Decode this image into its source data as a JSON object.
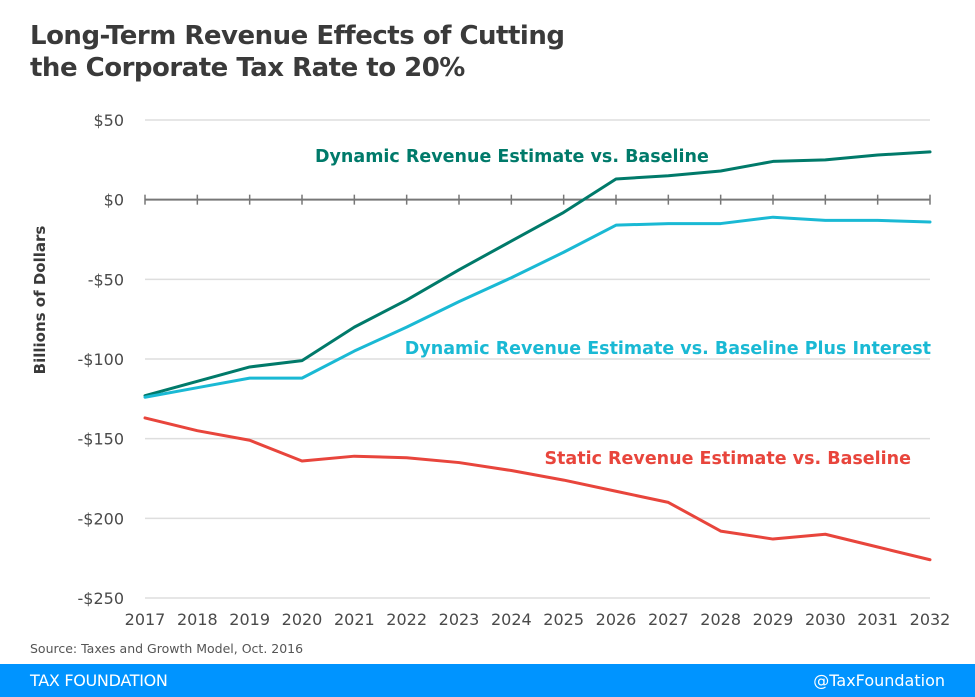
{
  "chart_data": {
    "type": "line",
    "title": "Long-Term Revenue Effects of Cutting the Corporate Tax Rate to 20%",
    "title_lines": [
      "Long-Term Revenue Effects of Cutting",
      "the Corporate Tax Rate to 20%"
    ],
    "xlabel": "",
    "ylabel": "Billions of Dollars",
    "x": [
      2017,
      2018,
      2019,
      2020,
      2021,
      2022,
      2023,
      2024,
      2025,
      2026,
      2027,
      2028,
      2029,
      2030,
      2031,
      2032
    ],
    "x_tick_labels": [
      "2017",
      "2018",
      "2019",
      "2020",
      "2021",
      "2022",
      "2023",
      "2024",
      "2025",
      "2026",
      "2027",
      "2028",
      "2029",
      "2030",
      "2031",
      "2032"
    ],
    "ylim": [
      -250,
      50
    ],
    "y_ticks": [
      50,
      0,
      -50,
      -100,
      -150,
      -200,
      -250
    ],
    "y_tick_labels": [
      "$50",
      "$0",
      "-$50",
      "-$100",
      "-$150",
      "-$200",
      "-$250"
    ],
    "grid": true,
    "legend": "inline-labels",
    "series": [
      {
        "name": "Dynamic Revenue Estimate vs. Baseline",
        "color": "#007a6a",
        "values": [
          -123,
          -114,
          -105,
          -101,
          -80,
          -63,
          -44,
          -26,
          -8,
          13,
          15,
          18,
          24,
          25,
          28,
          30
        ]
      },
      {
        "name": "Dynamic Revenue Estimate vs. Baseline Plus Interest",
        "color": "#1ab9d4",
        "values": [
          -124,
          -118,
          -112,
          -112,
          -95,
          -80,
          -64,
          -49,
          -33,
          -16,
          -15,
          -15,
          -11,
          -13,
          -13,
          -14
        ]
      },
      {
        "name": "Static Revenue Estimate vs. Baseline",
        "color": "#e8453c",
        "values": [
          -137,
          -145,
          -151,
          -164,
          -161,
          -162,
          -165,
          -170,
          -176,
          -183,
          -190,
          -208,
          -213,
          -210,
          -218,
          -226
        ]
      }
    ]
  },
  "source": "Source: Taxes and Growth Model, Oct. 2016",
  "footer": {
    "brand": "TAX FOUNDATION",
    "handle": "@TaxFoundation",
    "color": "#0094ff"
  }
}
